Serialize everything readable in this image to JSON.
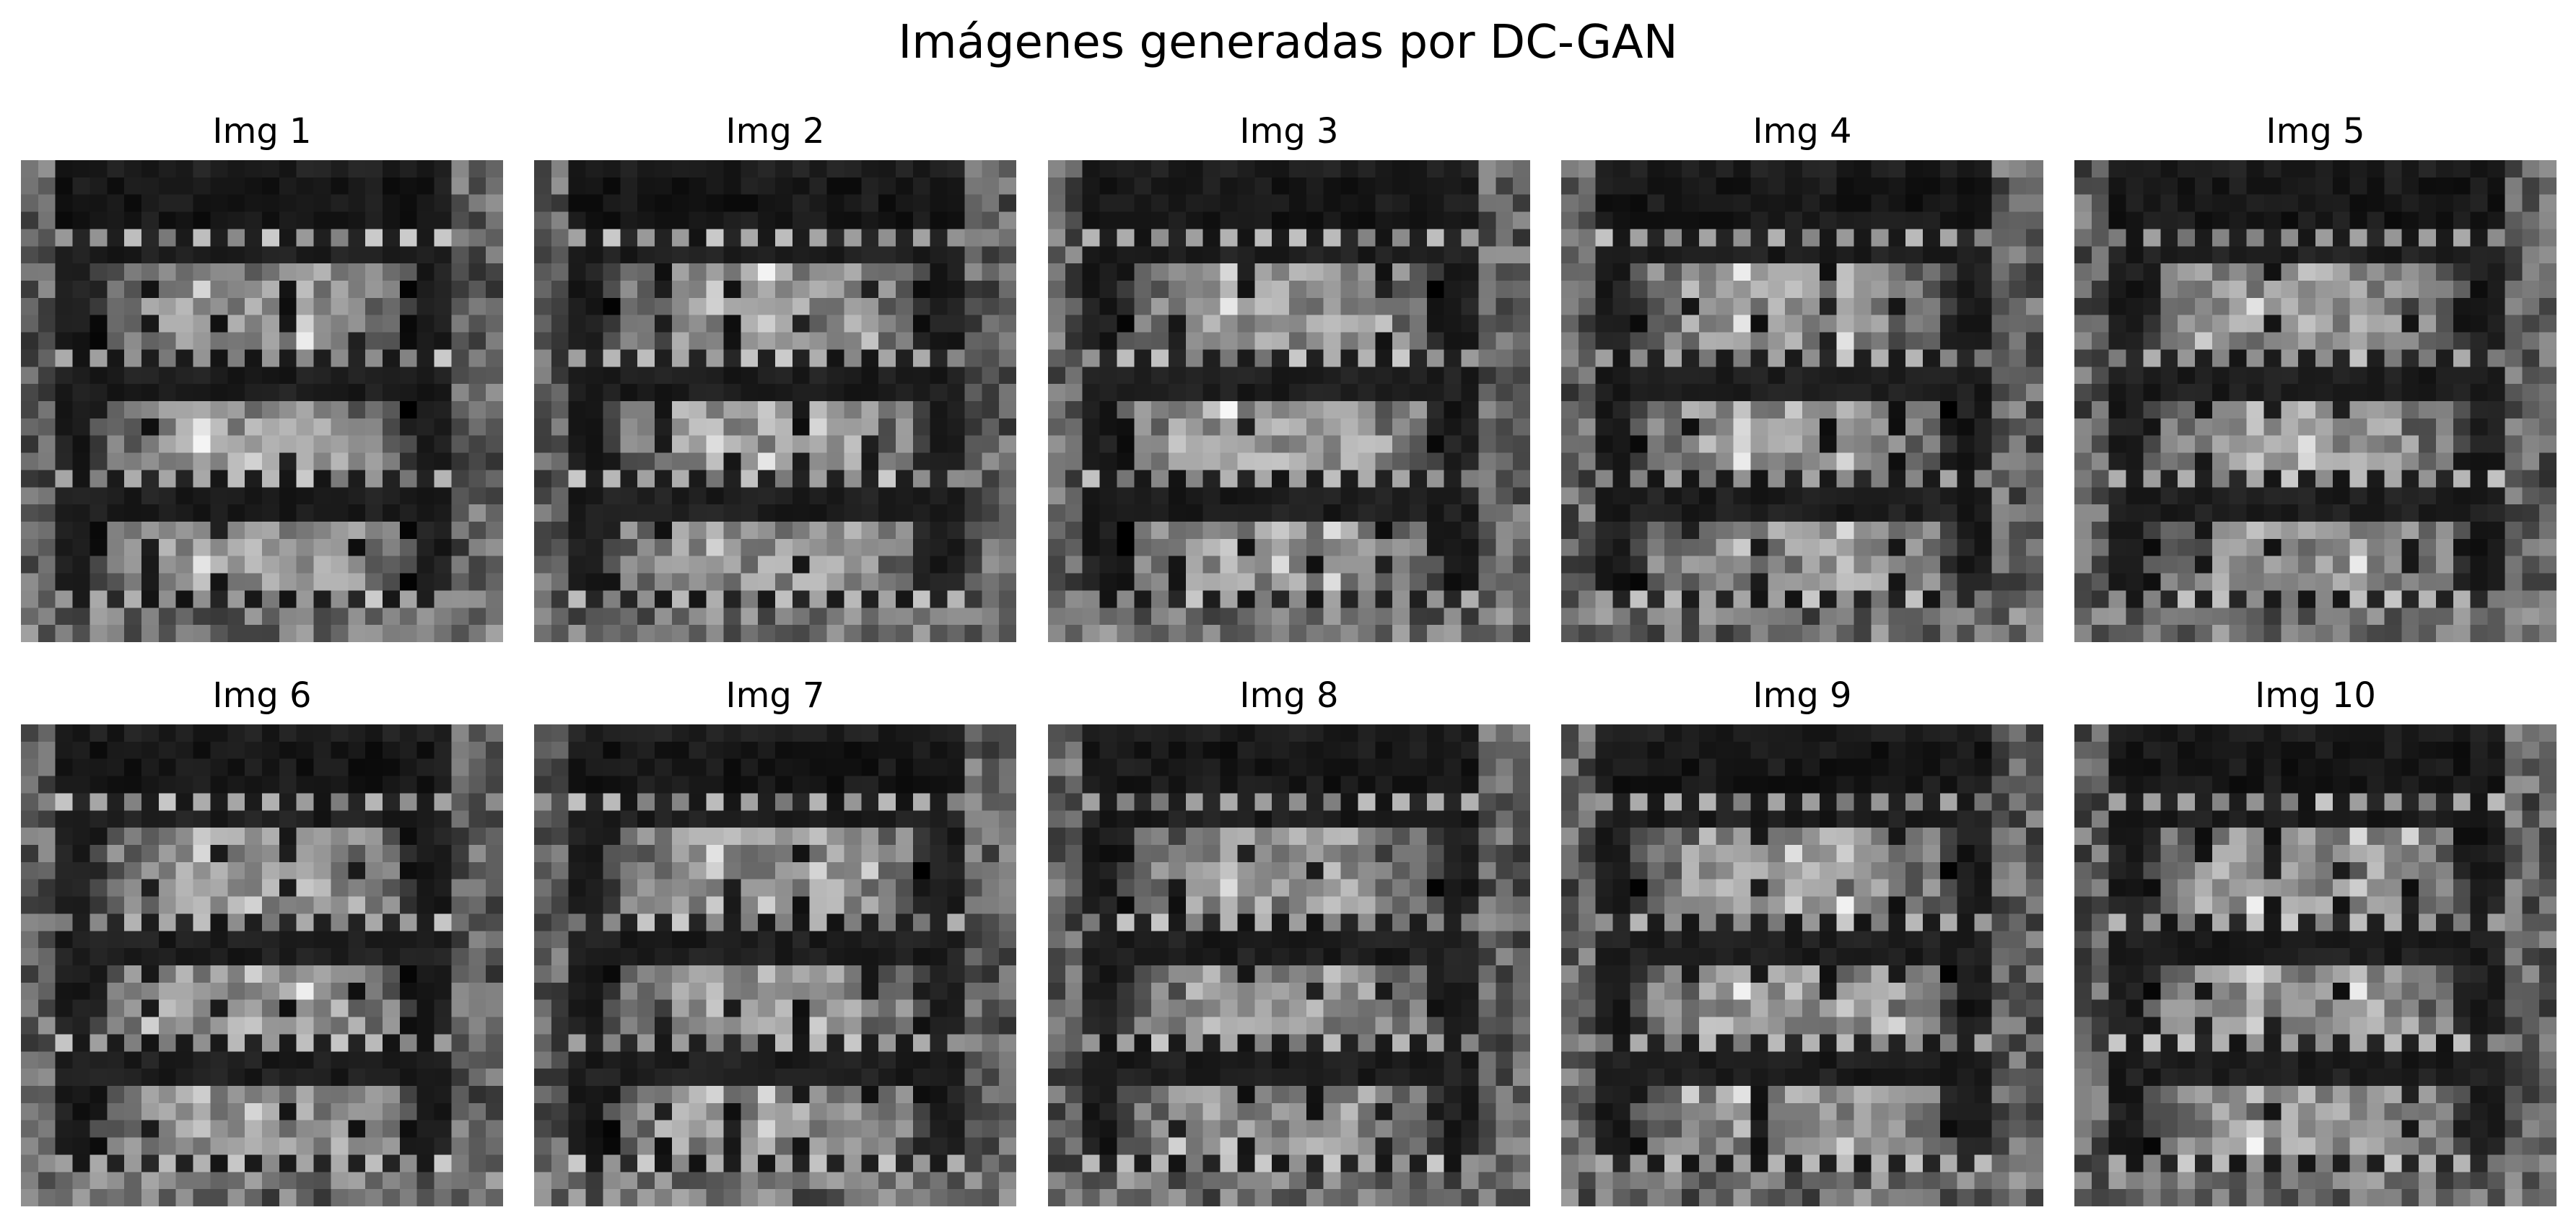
{
  "figure": {
    "title": "Imágenes generadas por DC-GAN",
    "colormap": "grayscale",
    "image_resolution": "28x28",
    "layout": "2 rows x 5 columns",
    "axes": "off"
  },
  "images": [
    {
      "title": "Img 1"
    },
    {
      "title": "Img 2"
    },
    {
      "title": "Img 3"
    },
    {
      "title": "Img 4"
    },
    {
      "title": "Img 5"
    },
    {
      "title": "Img 6"
    },
    {
      "title": "Img 7"
    },
    {
      "title": "Img 8"
    },
    {
      "title": "Img 9"
    },
    {
      "title": "Img 10"
    }
  ]
}
